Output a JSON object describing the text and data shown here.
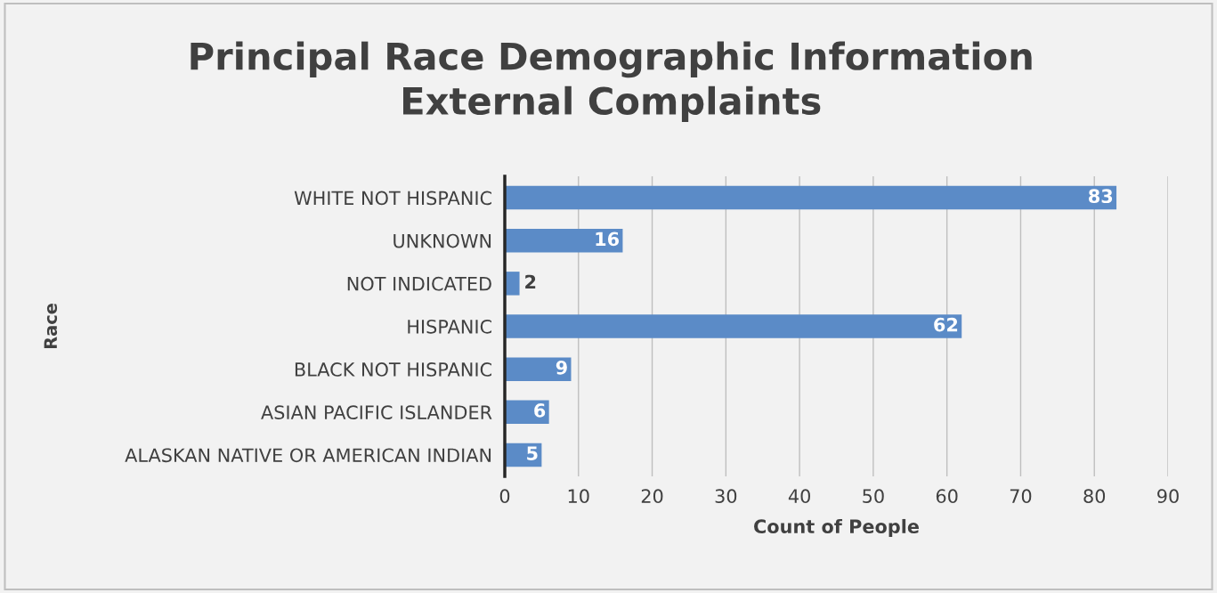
{
  "chart_data": {
    "type": "bar",
    "orientation": "horizontal",
    "title": "Principal Race Demographic Information\nExternal Complaints",
    "xlabel": "Count of People",
    "ylabel": "Race",
    "categories": [
      "WHITE NOT HISPANIC",
      "UNKNOWN",
      "NOT INDICATED",
      "HISPANIC",
      "BLACK NOT HISPANIC",
      "ASIAN PACIFIC ISLANDER",
      "ALASKAN NATIVE OR AMERICAN INDIAN"
    ],
    "values": [
      83,
      16,
      2,
      62,
      9,
      6,
      5
    ],
    "color": "#5b8bc7",
    "xlim": [
      0,
      90
    ],
    "xticks": [
      0,
      10,
      20,
      30,
      40,
      50,
      60,
      70,
      80,
      90
    ],
    "grid": "x",
    "data_labels": true
  }
}
